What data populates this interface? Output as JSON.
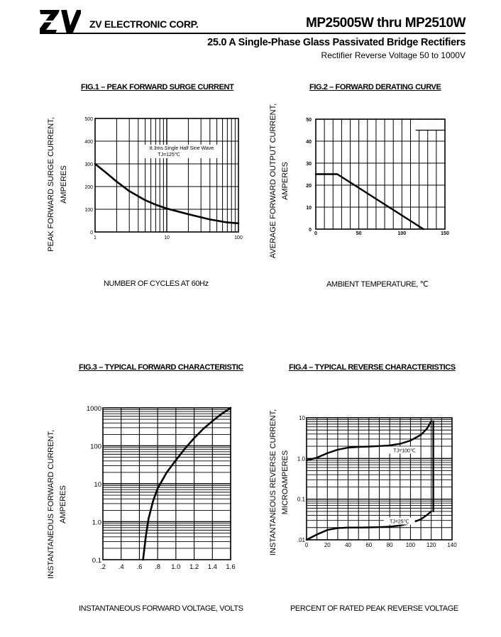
{
  "header": {
    "logo_text": "ZV",
    "company": "ZV ELECTRONIC CORP.",
    "part_range": "MP25005W thru MP2510W",
    "subtitle": "25.0  A Single-Phase Glass Passivated Bridge Rectifiers",
    "subsubtitle": "Rectifier Reverse Voltage 50 to 1000V"
  },
  "chart_data": [
    {
      "id": "fig1",
      "type": "line",
      "title": "FIG.1 – PEAK FORWARD SURGE CURRENT",
      "xlabel": "NUMBER  OF  CYCLES AT 60Hz",
      "ylabel": [
        "PEAK FORWARD SURGE CURRENT,",
        "AMPERES"
      ],
      "x_scale": "log",
      "xlim": [
        1,
        100
      ],
      "ylim": [
        0,
        500
      ],
      "x_ticks": [
        "1",
        "10",
        "100"
      ],
      "y_ticks": [
        "0",
        "100",
        "200",
        "300",
        "400",
        "500"
      ],
      "annotation": [
        "8.3ms Single Half Sine Wave",
        "TJ=125℃"
      ],
      "series": [
        {
          "name": "surge",
          "x": [
            1,
            1.5,
            2,
            3,
            5,
            7,
            10,
            20,
            40,
            70,
            100
          ],
          "y": [
            300,
            255,
            222,
            180,
            140,
            120,
            103,
            78,
            55,
            42,
            38
          ]
        }
      ]
    },
    {
      "id": "fig2",
      "type": "line",
      "title": "FIG.2 – FORWARD DERATING CURVE",
      "xlabel": "AMBIENT  TEMPERATURE,  ℃",
      "ylabel": [
        "AVERAGE FORWARD OUTPUT CURRENT,",
        "AMPERES"
      ],
      "xlim": [
        0,
        150
      ],
      "ylim": [
        0,
        50
      ],
      "x_ticks": [
        "0",
        "50",
        "100",
        "150"
      ],
      "y_ticks": [
        "0",
        "10",
        "20",
        "30",
        "40",
        "50"
      ],
      "series": [
        {
          "name": "derating",
          "x": [
            0,
            25,
            125
          ],
          "y": [
            25,
            25,
            0
          ]
        }
      ]
    },
    {
      "id": "fig3",
      "type": "line",
      "title": "FIG.3 – TYPICAL FORWARD CHARACTERISTIC",
      "xlabel": "INSTANTANEOUS FORWARD VOLTAGE,  VOLTS",
      "ylabel": [
        "INSTANTANEOUS FORWARD CURRENT,",
        "AMPERES"
      ],
      "xlim": [
        0.2,
        1.6
      ],
      "y_scale": "log",
      "ylim": [
        0.1,
        1000
      ],
      "x_ticks": [
        ".2",
        ".4",
        ".6",
        ".8",
        "1.0",
        "1.2",
        "1.4",
        "1.6"
      ],
      "y_ticks": [
        "0.1",
        "1.0",
        "10",
        "100",
        "1000"
      ],
      "series": [
        {
          "name": "forward",
          "x": [
            0.64,
            0.67,
            0.7,
            0.75,
            0.8,
            0.9,
            1.0,
            1.1,
            1.2,
            1.3,
            1.4,
            1.5,
            1.6
          ],
          "y": [
            0.1,
            0.4,
            1.2,
            3.5,
            7.5,
            20,
            42,
            85,
            160,
            280,
            450,
            690,
            1000
          ]
        }
      ]
    },
    {
      "id": "fig4",
      "type": "line",
      "title": "FIG.4 – TYPICAL REVERSE CHARACTERISTICS",
      "xlabel": "PERCENT OF RATED PEAK REVERSE VOLTAGE",
      "ylabel": [
        "INSTANTANEOUS REVERSE CURRENT,",
        "MICROAMPERES"
      ],
      "xlim": [
        0,
        140
      ],
      "y_scale": "log",
      "ylim": [
        0.01,
        10
      ],
      "x_ticks": [
        "0",
        "20",
        "40",
        "60",
        "80",
        "100",
        "120",
        "140"
      ],
      "y_ticks": [
        ".01",
        "0.1",
        "1.0",
        "10"
      ],
      "series": [
        {
          "name": "TJ=100℃",
          "x": [
            0,
            10,
            20,
            30,
            40,
            50,
            60,
            70,
            80,
            90,
            100,
            110,
            116,
            120
          ],
          "y": [
            0.9,
            1.05,
            1.35,
            1.65,
            1.85,
            1.93,
            1.97,
            2.02,
            2.1,
            2.3,
            2.75,
            3.8,
            5.5,
            8.2
          ]
        },
        {
          "name": "TJ=25℃",
          "x": [
            0,
            10,
            20,
            30,
            40,
            50,
            60,
            70,
            80,
            90,
            100,
            110,
            116,
            120
          ],
          "y": [
            0.01,
            0.0135,
            0.0175,
            0.0195,
            0.02,
            0.02,
            0.0202,
            0.0205,
            0.021,
            0.0225,
            0.0255,
            0.032,
            0.041,
            0.05
          ]
        },
        {
          "name": "breakdown",
          "x": [
            122,
            122
          ],
          "y": [
            0.05,
            8.2
          ]
        }
      ],
      "labels": [
        "TJ=100℃",
        "TJ=25℃"
      ]
    }
  ]
}
